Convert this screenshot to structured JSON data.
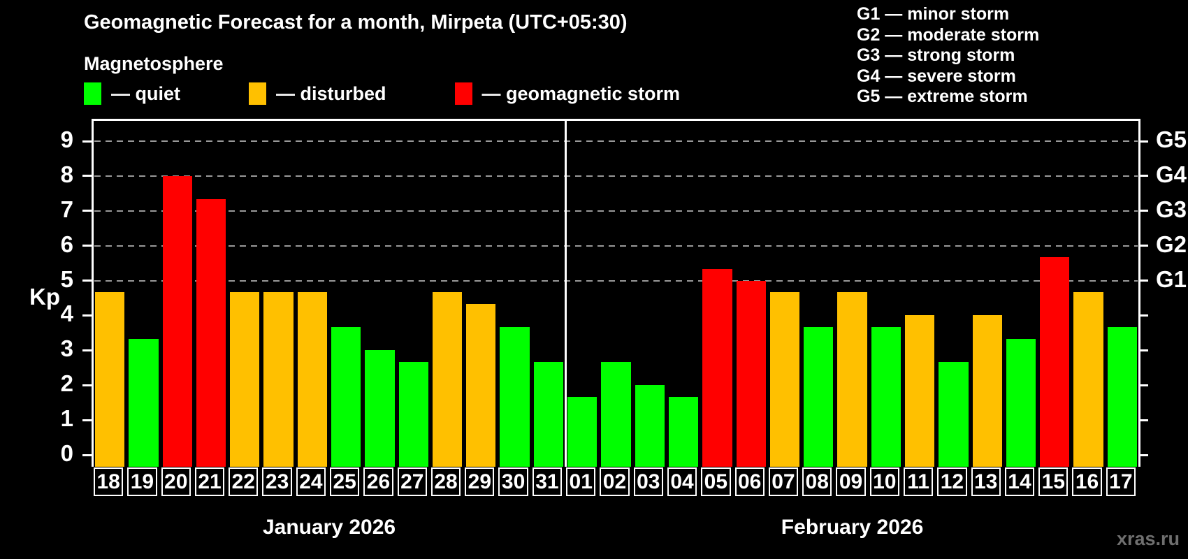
{
  "header": {
    "title": "Geomagnetic Forecast for a month, Mirpeta (UTC+05:30)",
    "subtitle": "Magnetosphere",
    "legend": [
      {
        "key": "quiet",
        "label": "— quiet",
        "color": "#00ff00"
      },
      {
        "key": "disturbed",
        "label": "— disturbed",
        "color": "#ffc000"
      },
      {
        "key": "storm",
        "label": "— geomagnetic storm",
        "color": "#ff0000"
      }
    ],
    "storm_scale": [
      "G1 — minor storm",
      "G2 — moderate storm",
      "G3 — strong storm",
      "G4 — severe storm",
      "G5 — extreme storm"
    ]
  },
  "chart_data": {
    "type": "bar",
    "title": "Geomagnetic Forecast for a month, Mirpeta (UTC+05:30)",
    "ylabel": "Kp",
    "ylim": [
      0,
      9
    ],
    "yticks": [
      0,
      1,
      2,
      3,
      4,
      5,
      6,
      7,
      8,
      9
    ],
    "gridlines_at": [
      5,
      6,
      7,
      8,
      9
    ],
    "grid_style": "dashed horizontal lines at storm thresholds",
    "right_axis": [
      {
        "kp": 5,
        "label": "G1"
      },
      {
        "kp": 6,
        "label": "G2"
      },
      {
        "kp": 7,
        "label": "G3"
      },
      {
        "kp": 8,
        "label": "G4"
      },
      {
        "kp": 9,
        "label": "G5"
      }
    ],
    "months": [
      {
        "label": "January 2026",
        "days": [
          {
            "day": "18",
            "kp": 4.67,
            "status": "disturbed"
          },
          {
            "day": "19",
            "kp": 3.33,
            "status": "quiet"
          },
          {
            "day": "20",
            "kp": 8,
            "status": "storm"
          },
          {
            "day": "21",
            "kp": 7.33,
            "status": "storm"
          },
          {
            "day": "22",
            "kp": 4.67,
            "status": "disturbed"
          },
          {
            "day": "23",
            "kp": 4.67,
            "status": "disturbed"
          },
          {
            "day": "24",
            "kp": 4.67,
            "status": "disturbed"
          },
          {
            "day": "25",
            "kp": 3.67,
            "status": "quiet"
          },
          {
            "day": "26",
            "kp": 3,
            "status": "quiet"
          },
          {
            "day": "27",
            "kp": 2.67,
            "status": "quiet"
          },
          {
            "day": "28",
            "kp": 4.67,
            "status": "disturbed"
          },
          {
            "day": "29",
            "kp": 4.33,
            "status": "disturbed"
          },
          {
            "day": "30",
            "kp": 3.67,
            "status": "quiet"
          },
          {
            "day": "31",
            "kp": 2.67,
            "status": "quiet"
          }
        ]
      },
      {
        "label": "February 2026",
        "days": [
          {
            "day": "01",
            "kp": 1.67,
            "status": "quiet"
          },
          {
            "day": "02",
            "kp": 2.67,
            "status": "quiet"
          },
          {
            "day": "03",
            "kp": 2,
            "status": "quiet"
          },
          {
            "day": "04",
            "kp": 1.67,
            "status": "quiet"
          },
          {
            "day": "05",
            "kp": 5.33,
            "status": "storm"
          },
          {
            "day": "06",
            "kp": 5,
            "status": "storm"
          },
          {
            "day": "07",
            "kp": 4.67,
            "status": "disturbed"
          },
          {
            "day": "08",
            "kp": 3.67,
            "status": "quiet"
          },
          {
            "day": "09",
            "kp": 4.67,
            "status": "disturbed"
          },
          {
            "day": "10",
            "kp": 3.67,
            "status": "quiet"
          },
          {
            "day": "11",
            "kp": 4,
            "status": "disturbed"
          },
          {
            "day": "12",
            "kp": 2.67,
            "status": "quiet"
          },
          {
            "day": "13",
            "kp": 4,
            "status": "disturbed"
          },
          {
            "day": "14",
            "kp": 3.33,
            "status": "quiet"
          },
          {
            "day": "15",
            "kp": 5.67,
            "status": "storm"
          },
          {
            "day": "16",
            "kp": 4.67,
            "status": "disturbed"
          },
          {
            "day": "17",
            "kp": 3.67,
            "status": "quiet"
          }
        ]
      }
    ]
  },
  "colors": {
    "quiet": "#00ff00",
    "disturbed": "#ffc000",
    "storm": "#ff0000",
    "background": "#000000",
    "grid": "#999999",
    "axis": "#ffffff",
    "watermark": "#6f6f6f"
  },
  "watermark": "xras.ru"
}
